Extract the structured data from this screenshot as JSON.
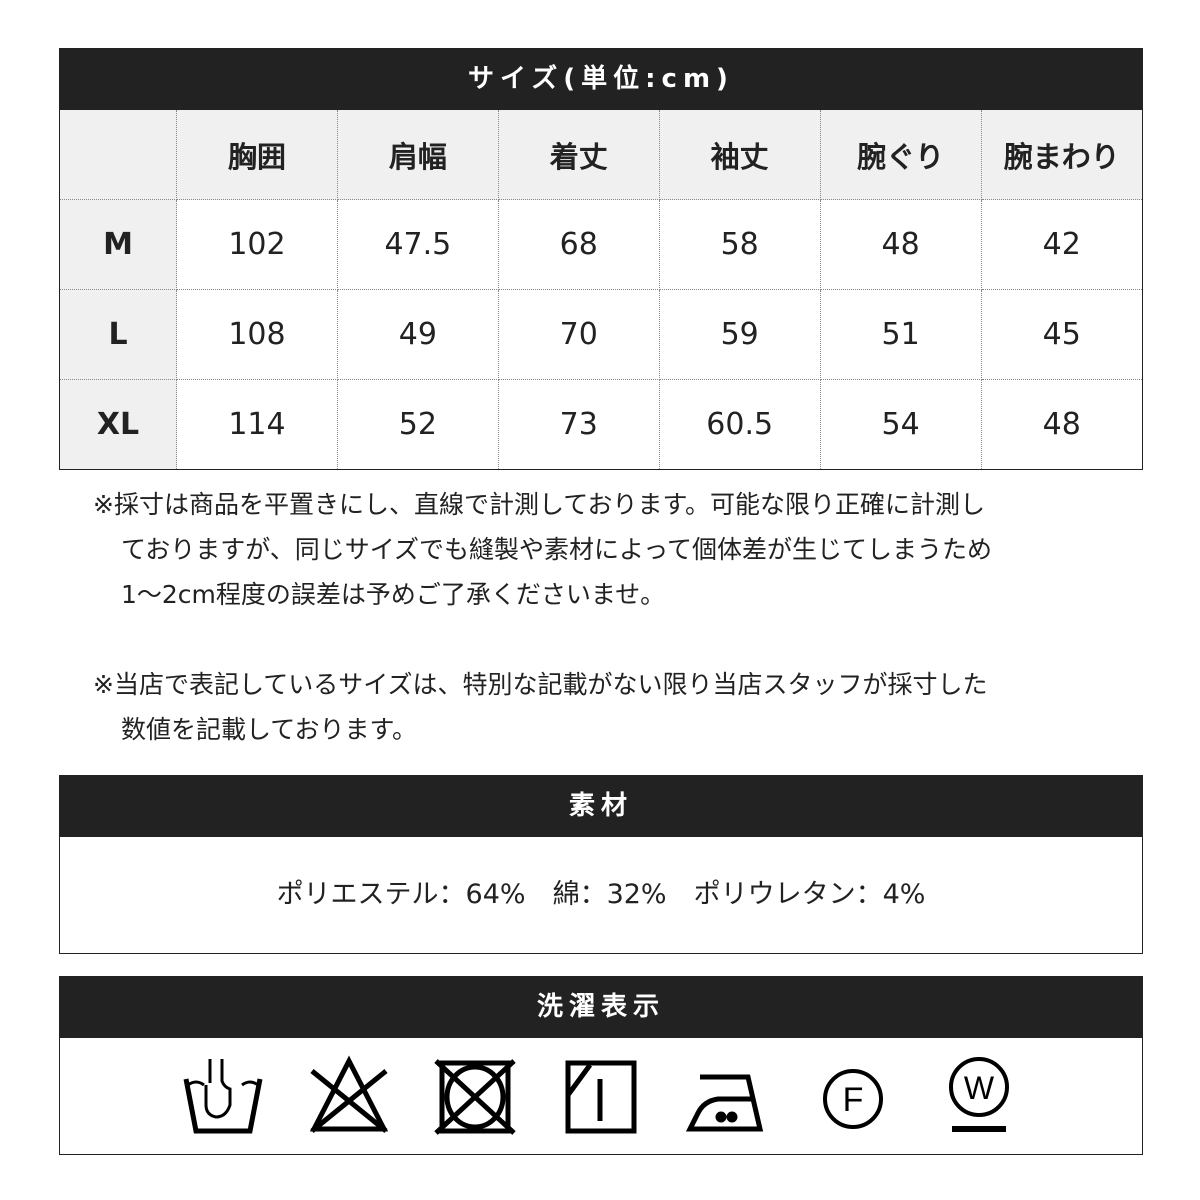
{
  "size_table": {
    "title": "サイズ(単位:cm)",
    "headers": [
      "",
      "胸囲",
      "肩幅",
      "着丈",
      "袖丈",
      "腕ぐり",
      "腕まわり"
    ],
    "rows": [
      {
        "size": "M",
        "values": [
          "102",
          "47.5",
          "68",
          "58",
          "48",
          "42"
        ]
      },
      {
        "size": "L",
        "values": [
          "108",
          "49",
          "70",
          "59",
          "51",
          "45"
        ]
      },
      {
        "size": "XL",
        "values": [
          "114",
          "52",
          "73",
          "60.5",
          "54",
          "48"
        ]
      }
    ]
  },
  "notes": [
    [
      "※採寸は商品を平置きにし、直線で計測しております。可能な限り正確に計測し",
      "ておりますが、同じサイズでも縫製や素材によって個体差が生じてしまうため",
      "1〜2cm程度の誤差は予めご了承くださいませ。"
    ],
    [
      "※当店で表記しているサイズは、特別な記載がない限り当店スタッフが採寸した",
      "数値を記載しております。"
    ]
  ],
  "material": {
    "title": "素材",
    "text": "ポリエステル：64%　綿：32%　ポリウレタン：4%"
  },
  "care": {
    "title": "洗濯表示",
    "icons": [
      "hand-wash-icon",
      "no-bleach-icon",
      "no-tumble-dry-icon",
      "line-dry-shade-icon",
      "iron-low-icon",
      "dry-clean-f-icon",
      "wet-clean-w-icon"
    ],
    "labels": {
      "f": "F",
      "w": "W"
    }
  }
}
